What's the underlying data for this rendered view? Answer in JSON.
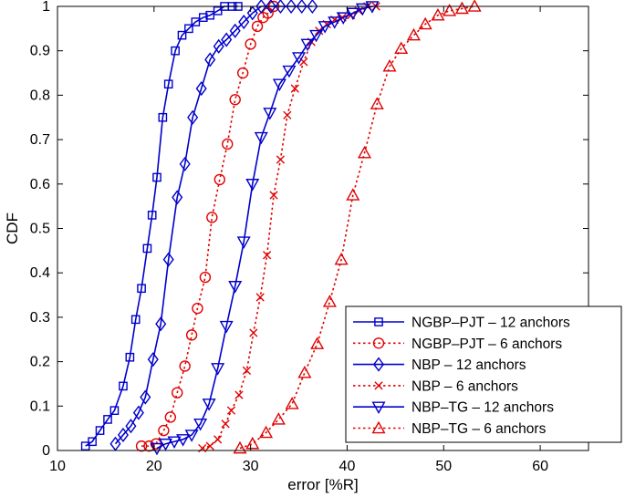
{
  "chart_data": {
    "type": "line",
    "xlabel": "error [%R]",
    "ylabel": "CDF",
    "xlim": [
      10,
      65
    ],
    "ylim": [
      0,
      1
    ],
    "x_ticks": [
      10,
      20,
      30,
      40,
      50,
      60
    ],
    "y_ticks": [
      0,
      0.1,
      0.2,
      0.3,
      0.4,
      0.5,
      0.6,
      0.7,
      0.8,
      0.9,
      1
    ],
    "grid": false,
    "legend_position": "lower-right",
    "series": [
      {
        "name": "NGBP–PJT – 12 anchors",
        "color": "#0000cc",
        "line": "solid",
        "marker": "square",
        "x": [
          12.9,
          13.6,
          14.4,
          15.2,
          15.9,
          16.8,
          17.5,
          18.1,
          18.7,
          19.3,
          19.8,
          20.3,
          20.9,
          21.5,
          22.2,
          22.9,
          23.6,
          24.3,
          25.1,
          25.8,
          26.6,
          27.3,
          28.1,
          28.7
        ],
        "y": [
          0.01,
          0.02,
          0.045,
          0.07,
          0.09,
          0.145,
          0.21,
          0.295,
          0.365,
          0.455,
          0.53,
          0.615,
          0.75,
          0.825,
          0.9,
          0.935,
          0.95,
          0.965,
          0.975,
          0.98,
          0.99,
          1.0,
          1.0,
          1.0
        ]
      },
      {
        "name": "NGBP–PJT – 6 anchors",
        "color": "#e00000",
        "line": "dotted",
        "marker": "circle",
        "x": [
          18.7,
          19.5,
          20.2,
          21.0,
          21.7,
          22.4,
          23.2,
          23.9,
          24.5,
          25.3,
          26.0,
          26.8,
          27.6,
          28.4,
          29.2,
          30.0,
          30.7,
          31.3,
          31.8,
          32.4
        ],
        "y": [
          0.01,
          0.01,
          0.015,
          0.045,
          0.075,
          0.13,
          0.19,
          0.26,
          0.32,
          0.39,
          0.525,
          0.61,
          0.69,
          0.79,
          0.85,
          0.915,
          0.955,
          0.975,
          0.985,
          1.0
        ]
      },
      {
        "name": "NBP – 12 anchors",
        "color": "#0000cc",
        "line": "solid",
        "marker": "diamond",
        "x": [
          16.0,
          16.8,
          17.6,
          18.4,
          19.1,
          19.9,
          20.7,
          21.5,
          22.4,
          23.2,
          24.0,
          24.9,
          25.8,
          26.7,
          27.5,
          28.4,
          29.3,
          30.2,
          31.1,
          32.1,
          33.1,
          34.2,
          35.3,
          36.4
        ],
        "y": [
          0.015,
          0.035,
          0.055,
          0.085,
          0.12,
          0.205,
          0.285,
          0.43,
          0.57,
          0.645,
          0.75,
          0.815,
          0.88,
          0.91,
          0.925,
          0.945,
          0.965,
          0.985,
          1.0,
          1.0,
          1.0,
          1.0,
          1.0,
          1.0
        ]
      },
      {
        "name": "NBP – 6 anchors",
        "color": "#e00000",
        "line": "dotted",
        "marker": "x",
        "x": [
          25.0,
          25.8,
          26.6,
          27.4,
          28.0,
          28.8,
          29.6,
          30.3,
          31.0,
          31.7,
          32.4,
          33.1,
          33.8,
          34.6,
          35.5,
          36.3,
          37.1,
          37.9,
          38.7,
          39.5,
          40.4,
          41.2,
          42.1,
          43.0
        ],
        "y": [
          0.005,
          0.01,
          0.025,
          0.06,
          0.09,
          0.125,
          0.18,
          0.265,
          0.345,
          0.44,
          0.575,
          0.655,
          0.755,
          0.815,
          0.875,
          0.92,
          0.945,
          0.96,
          0.97,
          0.975,
          0.98,
          0.99,
          1.0,
          1.0
        ]
      },
      {
        "name": "NBP–TG – 12 anchors",
        "color": "#0000cc",
        "line": "solid",
        "marker": "triangle-down",
        "x": [
          20.3,
          21.2,
          22.1,
          23.0,
          23.9,
          24.8,
          25.7,
          26.6,
          27.5,
          28.4,
          29.3,
          30.2,
          31.1,
          32.0,
          33.0,
          34.0,
          35.0,
          35.9,
          36.8,
          37.7,
          38.7,
          39.6,
          40.6,
          41.6,
          42.6
        ],
        "y": [
          0.005,
          0.015,
          0.02,
          0.025,
          0.035,
          0.06,
          0.105,
          0.185,
          0.28,
          0.37,
          0.47,
          0.6,
          0.705,
          0.76,
          0.825,
          0.855,
          0.885,
          0.915,
          0.935,
          0.955,
          0.965,
          0.975,
          0.985,
          0.995,
          1.0
        ]
      },
      {
        "name": "NBP–TG – 6 anchors",
        "color": "#e00000",
        "line": "dotted",
        "marker": "triangle-up",
        "x": [
          28.9,
          30.2,
          31.6,
          32.9,
          34.3,
          35.6,
          36.9,
          38.2,
          39.4,
          40.6,
          41.8,
          43.1,
          44.4,
          45.6,
          46.9,
          48.1,
          49.4,
          50.6,
          51.9,
          53.2
        ],
        "y": [
          0.005,
          0.015,
          0.04,
          0.07,
          0.105,
          0.175,
          0.24,
          0.335,
          0.43,
          0.575,
          0.67,
          0.78,
          0.865,
          0.905,
          0.935,
          0.96,
          0.98,
          0.99,
          0.995,
          1.0
        ]
      }
    ]
  }
}
